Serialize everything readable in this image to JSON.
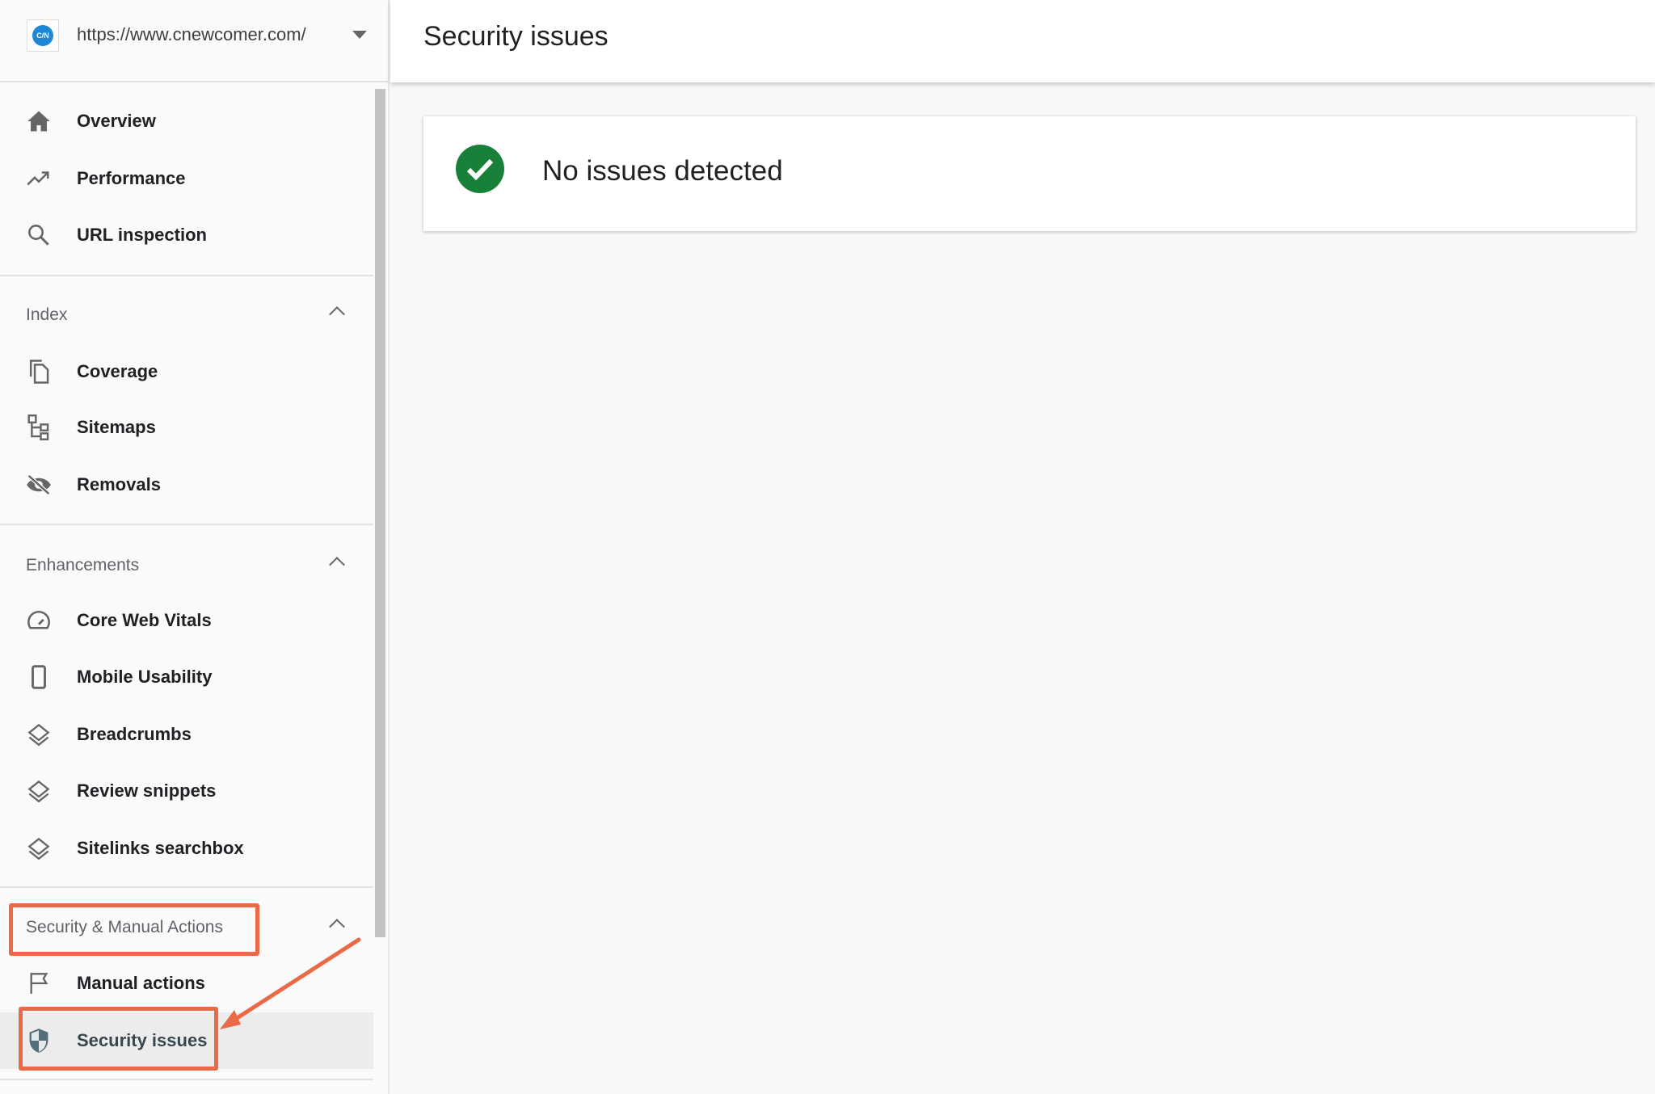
{
  "property": {
    "logo_text": "C/N",
    "url": "https://www.cnewcomer.com/"
  },
  "nav": {
    "top": [
      {
        "label": "Overview",
        "icon": "home-icon"
      },
      {
        "label": "Performance",
        "icon": "trending-up-icon"
      },
      {
        "label": "URL inspection",
        "icon": "search-icon"
      }
    ],
    "index": {
      "title": "Index",
      "items": [
        {
          "label": "Coverage",
          "icon": "copy-icon"
        },
        {
          "label": "Sitemaps",
          "icon": "sitemap-icon"
        },
        {
          "label": "Removals",
          "icon": "eye-off-icon"
        }
      ]
    },
    "enhancements": {
      "title": "Enhancements",
      "items": [
        {
          "label": "Core Web Vitals",
          "icon": "gauge-icon"
        },
        {
          "label": "Mobile Usability",
          "icon": "phone-icon"
        },
        {
          "label": "Breadcrumbs",
          "icon": "layers-icon"
        },
        {
          "label": "Review snippets",
          "icon": "layers-icon"
        },
        {
          "label": "Sitelinks searchbox",
          "icon": "layers-icon"
        }
      ]
    },
    "security": {
      "title": "Security & Manual Actions",
      "items": [
        {
          "label": "Manual actions",
          "icon": "flag-icon"
        },
        {
          "label": "Security issues",
          "icon": "shield-icon",
          "active": true
        }
      ]
    }
  },
  "header": {
    "title": "Security issues"
  },
  "status": {
    "message": "No issues detected",
    "color": "#188038"
  },
  "annotation": {
    "color": "#ea6a47"
  }
}
